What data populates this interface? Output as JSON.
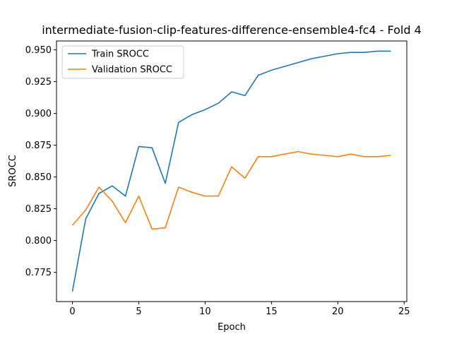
{
  "chart_data": {
    "type": "line",
    "title": "intermediate-fusion-clip-features-difference-ensemble4-fc4 - Fold 4",
    "xlabel": "Epoch",
    "ylabel": "SROCC",
    "xlim": [
      -1.2,
      25.2
    ],
    "ylim": [
      0.752,
      0.957
    ],
    "xticks": [
      0,
      5,
      10,
      15,
      20,
      25
    ],
    "yticks": [
      0.775,
      0.8,
      0.825,
      0.85,
      0.875,
      0.9,
      0.925,
      0.95
    ],
    "ytick_labels": [
      "0.775",
      "0.800",
      "0.825",
      "0.850",
      "0.875",
      "0.900",
      "0.925",
      "0.950"
    ],
    "grid": false,
    "legend_position": "top-left",
    "x": [
      0,
      1,
      2,
      3,
      4,
      5,
      6,
      7,
      8,
      9,
      10,
      11,
      12,
      13,
      14,
      15,
      16,
      17,
      18,
      19,
      20,
      21,
      22,
      23,
      24
    ],
    "series": [
      {
        "name": "Train SROCC",
        "color": "#1f77b4",
        "values": [
          0.76,
          0.817,
          0.837,
          0.843,
          0.835,
          0.874,
          0.873,
          0.845,
          0.893,
          0.899,
          0.903,
          0.908,
          0.917,
          0.914,
          0.93,
          0.934,
          0.937,
          0.94,
          0.943,
          0.945,
          0.947,
          0.948,
          0.948,
          0.949,
          0.949
        ]
      },
      {
        "name": "Validation SROCC",
        "color": "#ff7f0e",
        "values": [
          0.812,
          0.824,
          0.842,
          0.831,
          0.814,
          0.835,
          0.809,
          0.81,
          0.842,
          0.838,
          0.835,
          0.835,
          0.858,
          0.849,
          0.866,
          0.866,
          0.868,
          0.87,
          0.868,
          0.867,
          0.866,
          0.868,
          0.866,
          0.866,
          0.867
        ]
      }
    ]
  }
}
